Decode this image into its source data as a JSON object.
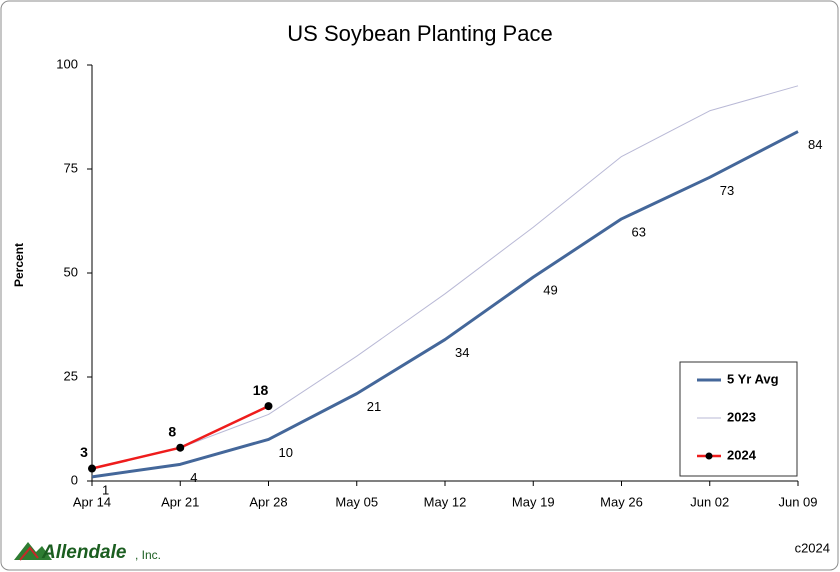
{
  "chart_data": {
    "type": "line",
    "title": "US Soybean Planting Pace",
    "y_label": "Percent",
    "categories": [
      "Apr 14",
      "Apr 21",
      "Apr 28",
      "May 05",
      "May 12",
      "May 19",
      "May 26",
      "Jun 02",
      "Jun 09"
    ],
    "series": [
      {
        "name": "5 Yr Avg",
        "color": "#44679a",
        "width": 3,
        "data_labels": true,
        "marker": false,
        "values": [
          1,
          4,
          10,
          21,
          34,
          49,
          63,
          73,
          84
        ]
      },
      {
        "name": "2023",
        "color": "#b9b9d6",
        "width": 1,
        "data_labels": false,
        "marker": false,
        "values": [
          3,
          8,
          16,
          30,
          45,
          61,
          78,
          89,
          95
        ]
      },
      {
        "name": "2024",
        "color": "#ee1c1c",
        "width": 2.5,
        "data_labels": true,
        "marker": true,
        "values": [
          3,
          8,
          18,
          null,
          null,
          null,
          null,
          null,
          null
        ]
      }
    ],
    "ylim": [
      0,
      100
    ],
    "yticks": [
      0,
      25,
      50,
      75,
      100
    ],
    "grid": false,
    "legend": "lower right",
    "logo": [
      "Allendale",
      ", Inc."
    ],
    "copyright": "c2024"
  }
}
